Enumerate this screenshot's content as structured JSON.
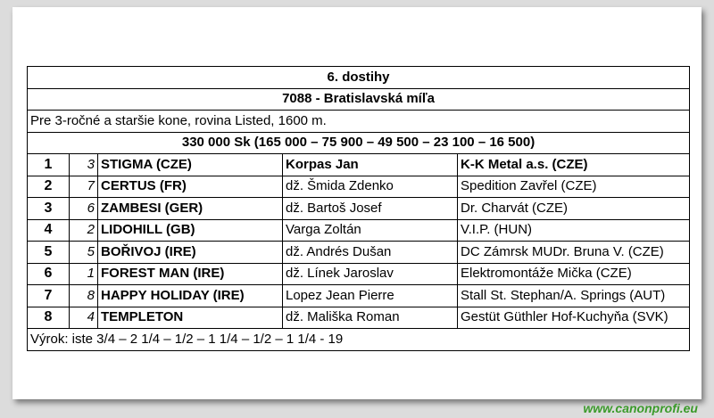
{
  "race": {
    "number": "6. dostihy",
    "name": "7088 - Bratislavská míľa",
    "conditions": "Pre 3-ročné a staršie kone, rovina Listed, 1600 m.",
    "prize": "330 000 Sk (165 000 – 75 900 – 49 500 – 23 100 – 16 500)"
  },
  "header_row": {
    "pos": "1",
    "num": "3",
    "horse": "STIGMA (CZE)",
    "jockey": "Korpas Jan",
    "owner": "K-K Metal a.s. (CZE)"
  },
  "results": [
    {
      "pos": "2",
      "num": "7",
      "horse": "CERTUS (FR)",
      "jockey": "dž. Šmida Zdenko",
      "owner": "Spedition Zavřel (CZE)"
    },
    {
      "pos": "3",
      "num": "6",
      "horse": "ZAMBESI (GER)",
      "jockey": "dž. Bartoš Josef",
      "owner": "Dr. Charvát (CZE)"
    },
    {
      "pos": "4",
      "num": "2",
      "horse": "LIDOHILL (GB)",
      "jockey": "Varga Zoltán",
      "owner": "V.I.P. (HUN)"
    },
    {
      "pos": "5",
      "num": "5",
      "horse": "BOŘIVOJ (IRE)",
      "jockey": "dž. Andrés Dušan",
      "owner": "DC Zámrsk MUDr. Bruna V. (CZE)"
    },
    {
      "pos": "6",
      "num": "1",
      "horse": "FOREST MAN (IRE)",
      "jockey": "dž. Línek Jaroslav",
      "owner": "Elektromontáže Mička (CZE)"
    },
    {
      "pos": "7",
      "num": "8",
      "horse": "HAPPY HOLIDAY (IRE)",
      "jockey": "Lopez Jean Pierre",
      "owner": "Stall St. Stephan/A. Springs (AUT)"
    },
    {
      "pos": "8",
      "num": "4",
      "horse": "TEMPLETON",
      "jockey": "dž. Mališka Roman",
      "owner": "Gestüt Güthler Hof-Kuchyňa (SVK)"
    }
  ],
  "margins": "Výrok: iste 3/4 – 2 1/4 – 1/2 – 1 1/4 – 1/2 – 1 1/4 - 19",
  "watermark": "www.canonprofi.eu"
}
